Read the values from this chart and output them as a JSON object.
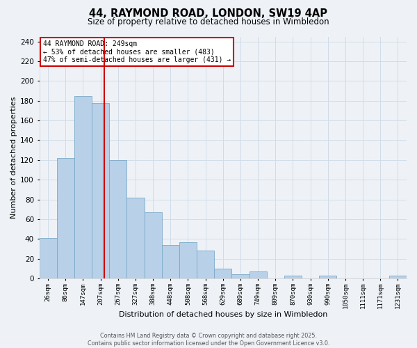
{
  "title_line1": "44, RAYMOND ROAD, LONDON, SW19 4AP",
  "title_line2": "Size of property relative to detached houses in Wimbledon",
  "bar_labels": [
    "26sqm",
    "86sqm",
    "147sqm",
    "207sqm",
    "267sqm",
    "327sqm",
    "388sqm",
    "448sqm",
    "508sqm",
    "568sqm",
    "629sqm",
    "689sqm",
    "749sqm",
    "809sqm",
    "870sqm",
    "930sqm",
    "990sqm",
    "1050sqm",
    "1111sqm",
    "1171sqm",
    "1231sqm"
  ],
  "bar_values": [
    41,
    122,
    185,
    178,
    120,
    82,
    67,
    34,
    37,
    28,
    10,
    4,
    7,
    0,
    3,
    0,
    3,
    0,
    0,
    0,
    3
  ],
  "bar_color": "#b8d0e8",
  "bar_edge_color": "#7aaac8",
  "vline_x_index": 3.53,
  "vline_color": "#cc0000",
  "xlabel": "Distribution of detached houses by size in Wimbledon",
  "ylabel": "Number of detached properties",
  "ylim": [
    0,
    245
  ],
  "yticks": [
    0,
    20,
    40,
    60,
    80,
    100,
    120,
    140,
    160,
    180,
    200,
    220,
    240
  ],
  "annotation_title": "44 RAYMOND ROAD: 249sqm",
  "annotation_line2": "← 53% of detached houses are smaller (483)",
  "annotation_line3": "47% of semi-detached houses are larger (431) →",
  "annotation_box_color": "#ffffff",
  "annotation_box_edge": "#cc0000",
  "grid_color": "#d0dce8",
  "background_color": "#eef2f7",
  "footer_line1": "Contains HM Land Registry data © Crown copyright and database right 2025.",
  "footer_line2": "Contains public sector information licensed under the Open Government Licence v3.0."
}
